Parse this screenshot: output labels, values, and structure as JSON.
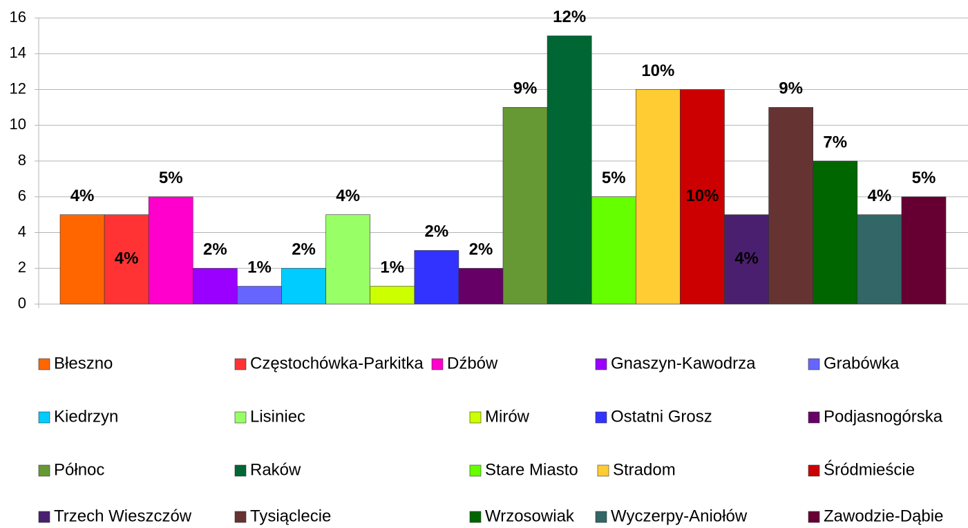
{
  "chart_data": {
    "type": "bar",
    "categories": [
      null
    ],
    "ylim": [
      0,
      16
    ],
    "yticks": [
      0,
      2,
      4,
      6,
      8,
      10,
      12,
      14,
      16
    ],
    "grid": true,
    "series": [
      {
        "name": "Błeszno",
        "color": "#ff6600",
        "values": [
          5
        ],
        "share_labels": [
          "4%"
        ]
      },
      {
        "name": "Częstochówka-Parkitka",
        "color": "#ff3333",
        "values": [
          5
        ],
        "share_labels": [
          "4%"
        ]
      },
      {
        "name": "Dźbów",
        "color": "#ff00cc",
        "values": [
          6
        ],
        "share_labels": [
          "5%"
        ]
      },
      {
        "name": "Gnaszyn-Kawodrza",
        "color": "#9900ff",
        "values": [
          2
        ],
        "share_labels": [
          "2%"
        ]
      },
      {
        "name": "Grabówka",
        "color": "#6666ff",
        "values": [
          1
        ],
        "share_labels": [
          "1%"
        ]
      },
      {
        "name": "Kiedrzyn",
        "color": "#00ccff",
        "values": [
          2
        ],
        "share_labels": [
          "2%"
        ]
      },
      {
        "name": "Lisiniec",
        "color": "#99ff66",
        "values": [
          5
        ],
        "share_labels": [
          "4%"
        ]
      },
      {
        "name": "Mirów",
        "color": "#ccff00",
        "values": [
          1
        ],
        "share_labels": [
          "1%"
        ]
      },
      {
        "name": "Ostatni Grosz",
        "color": "#3333ff",
        "values": [
          3
        ],
        "share_labels": [
          "2%"
        ]
      },
      {
        "name": "Podjasnogórska",
        "color": "#660066",
        "values": [
          2
        ],
        "share_labels": [
          "2%"
        ]
      },
      {
        "name": "Północ",
        "color": "#669933",
        "values": [
          11
        ],
        "share_labels": [
          "9%"
        ]
      },
      {
        "name": "Raków",
        "color": "#006633",
        "values": [
          15
        ],
        "share_labels": [
          "12%"
        ]
      },
      {
        "name": "Stare Miasto",
        "color": "#66ff00",
        "values": [
          6
        ],
        "share_labels": [
          "5%"
        ]
      },
      {
        "name": "Stradom",
        "color": "#ffcc33",
        "values": [
          12
        ],
        "share_labels": [
          "10%"
        ]
      },
      {
        "name": "Śródmieście",
        "color": "#cc0000",
        "values": [
          12
        ],
        "share_labels": [
          "10%"
        ]
      },
      {
        "name": "Trzech Wieszczów",
        "color": "#4b1f6f",
        "values": [
          5
        ],
        "share_labels": [
          "4%"
        ]
      },
      {
        "name": "Tysiąclecie",
        "color": "#663333",
        "values": [
          11
        ],
        "share_labels": [
          "9%"
        ]
      },
      {
        "name": "Wrzosowiak",
        "color": "#006600",
        "values": [
          8
        ],
        "share_labels": [
          "7%"
        ]
      },
      {
        "name": "Wyczerpy-Aniołów",
        "color": "#336666",
        "values": [
          5
        ],
        "share_labels": [
          "4%"
        ]
      },
      {
        "name": "Zawodzie-Dąbie",
        "color": "#660033",
        "values": [
          6
        ],
        "share_labels": [
          "5%"
        ]
      }
    ]
  }
}
